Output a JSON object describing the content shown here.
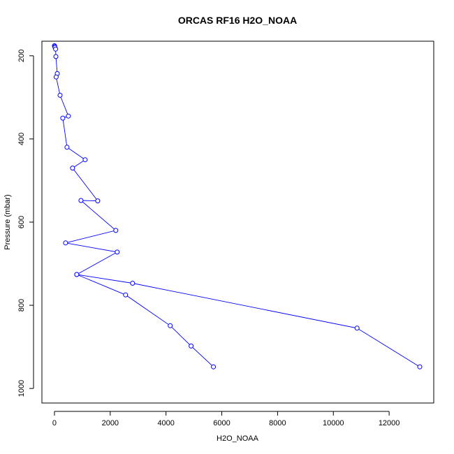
{
  "chart_data": {
    "type": "line",
    "title": "ORCAS RF16 H2O_NOAA",
    "xlabel": "H2O_NOAA",
    "ylabel": "Pressure (mbar)",
    "xlim": [
      -450,
      13600
    ],
    "ylim": [
      1035,
      165
    ],
    "y_reversed": true,
    "grid": false,
    "x_ticks": [
      0,
      2000,
      4000,
      6000,
      8000,
      10000,
      12000
    ],
    "y_ticks": [
      200,
      400,
      600,
      800,
      1000
    ],
    "series": [
      {
        "color": "#0000ff",
        "marker": "open-circle",
        "points": [
          {
            "x": 0,
            "y": 176
          },
          {
            "x": 10,
            "y": 178
          },
          {
            "x": 20,
            "y": 180
          },
          {
            "x": 40,
            "y": 184
          },
          {
            "x": 50,
            "y": 202
          },
          {
            "x": 100,
            "y": 243
          },
          {
            "x": 60,
            "y": 251
          },
          {
            "x": 200,
            "y": 295
          },
          {
            "x": 500,
            "y": 345
          },
          {
            "x": 300,
            "y": 350
          },
          {
            "x": 450,
            "y": 420
          },
          {
            "x": 1100,
            "y": 450
          },
          {
            "x": 650,
            "y": 470
          },
          {
            "x": 1550,
            "y": 549
          },
          {
            "x": 950,
            "y": 548
          },
          {
            "x": 2200,
            "y": 620
          },
          {
            "x": 400,
            "y": 650
          },
          {
            "x": 2250,
            "y": 672
          },
          {
            "x": 800,
            "y": 726
          },
          {
            "x": 2800,
            "y": 747
          },
          {
            "x": 10850,
            "y": 855
          },
          {
            "x": 13100,
            "y": 948
          }
        ]
      },
      {
        "color": "#0000ff",
        "marker": "open-circle",
        "points": [
          {
            "x": 800,
            "y": 726
          },
          {
            "x": 2550,
            "y": 775
          },
          {
            "x": 4150,
            "y": 849
          },
          {
            "x": 4900,
            "y": 898
          },
          {
            "x": 5700,
            "y": 948
          }
        ]
      }
    ]
  }
}
